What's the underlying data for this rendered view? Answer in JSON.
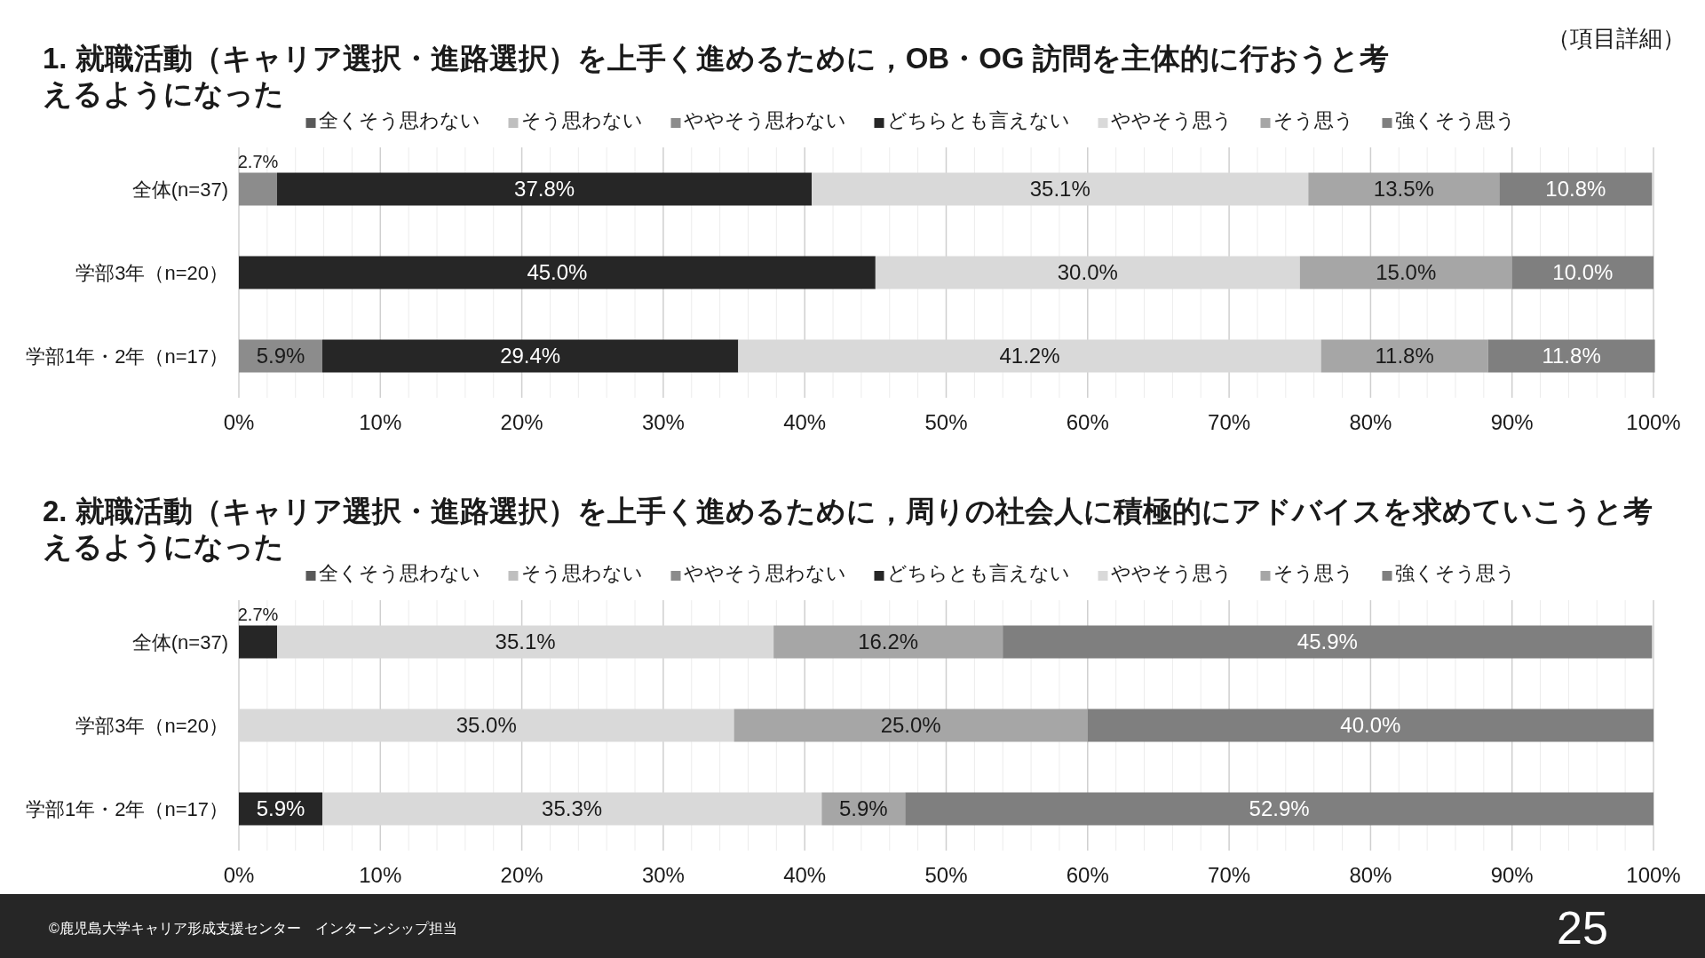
{
  "chart_data": [
    {
      "type": "bar",
      "orientation": "horizontal",
      "stacked": true,
      "title": "1. 就職活動（キャリア選択・進路選択）を上手く進めるために，OB・OG 訪問を主体的に行おうと考えるようになった",
      "annotations": [
        "（項目詳細）"
      ],
      "categories": [
        "全体(n=37)",
        "学部3年（n=20）",
        "学部1年・2年（n=17）"
      ],
      "legend": "top",
      "grid": "x",
      "xlim": [
        0,
        100
      ],
      "xticks": [
        {
          "value": 0,
          "label": "0%"
        },
        {
          "value": 2,
          "label": null
        },
        {
          "value": 4,
          "label": null
        },
        {
          "value": 6,
          "label": null
        },
        {
          "value": 8,
          "label": null
        },
        {
          "value": 10,
          "label": "10%"
        },
        {
          "value": 12,
          "label": null
        },
        {
          "value": 14,
          "label": null
        },
        {
          "value": 16,
          "label": null
        },
        {
          "value": 18,
          "label": null
        },
        {
          "value": 20,
          "label": "20%"
        },
        {
          "value": 22,
          "label": null
        },
        {
          "value": 24,
          "label": null
        },
        {
          "value": 26,
          "label": null
        },
        {
          "value": 28,
          "label": null
        },
        {
          "value": 30,
          "label": "30%"
        },
        {
          "value": 32,
          "label": null
        },
        {
          "value": 34,
          "label": null
        },
        {
          "value": 36,
          "label": null
        },
        {
          "value": 38,
          "label": null
        },
        {
          "value": 40,
          "label": "40%"
        },
        {
          "value": 42,
          "label": null
        },
        {
          "value": 44,
          "label": null
        },
        {
          "value": 46,
          "label": null
        },
        {
          "value": 48,
          "label": null
        },
        {
          "value": 50,
          "label": "50%"
        },
        {
          "value": 52,
          "label": null
        },
        {
          "value": 54,
          "label": null
        },
        {
          "value": 56,
          "label": null
        },
        {
          "value": 58,
          "label": null
        },
        {
          "value": 60,
          "label": "60%"
        },
        {
          "value": 62,
          "label": null
        },
        {
          "value": 64,
          "label": null
        },
        {
          "value": 66,
          "label": null
        },
        {
          "value": 68,
          "label": null
        },
        {
          "value": 70,
          "label": "70%"
        },
        {
          "value": 72,
          "label": null
        },
        {
          "value": 74,
          "label": null
        },
        {
          "value": 76,
          "label": null
        },
        {
          "value": 78,
          "label": null
        },
        {
          "value": 80,
          "label": "80%"
        },
        {
          "value": 82,
          "label": null
        },
        {
          "value": 84,
          "label": null
        },
        {
          "value": 86,
          "label": null
        },
        {
          "value": 88,
          "label": null
        },
        {
          "value": 90,
          "label": "90%"
        },
        {
          "value": 92,
          "label": null
        },
        {
          "value": 94,
          "label": null
        },
        {
          "value": 96,
          "label": null
        },
        {
          "value": 98,
          "label": null
        },
        {
          "value": 100,
          "label": "100%"
        }
      ],
      "series": [
        {
          "name": "全くそう思わない",
          "color": "#595959",
          "values": [
            0,
            0,
            0
          ]
        },
        {
          "name": "そう思わない",
          "color": "#bfbfbf",
          "values": [
            0,
            0,
            0
          ]
        },
        {
          "name": "ややそう思わない",
          "color": "#8c8c8c",
          "values": [
            2.7,
            0,
            5.9
          ],
          "value_labels": [
            "2.7%",
            null,
            "5.9%"
          ]
        },
        {
          "name": "どちらとも言えない",
          "color": "#262626",
          "values": [
            37.8,
            45.0,
            29.4
          ],
          "value_labels": [
            "37.8%",
            "45.0%",
            "29.4%"
          ]
        },
        {
          "name": "ややそう思う",
          "color": "#d9d9d9",
          "values": [
            35.1,
            30.0,
            41.2
          ],
          "value_labels": [
            "35.1%",
            "30.0%",
            "41.2%"
          ]
        },
        {
          "name": "そう思う",
          "color": "#a6a6a6",
          "values": [
            13.5,
            15.0,
            11.8
          ],
          "value_labels": [
            "13.5%",
            "15.0%",
            "11.8%"
          ]
        },
        {
          "name": "強くそう思う",
          "color": "#7f7f7f",
          "values": [
            10.8,
            10.0,
            11.8
          ],
          "value_labels": [
            "10.8%",
            "10.0%",
            "11.8%"
          ]
        }
      ]
    },
    {
      "type": "bar",
      "orientation": "horizontal",
      "stacked": true,
      "title": "2. 就職活動（キャリア選択・進路選択）を上手く進めるために，周りの社会人に積極的にアドバイスを求めていこうと考えるようになった",
      "annotations": [
        "©鹿児島大学キャリア形成支援センター　インターンシップ担当",
        "25"
      ],
      "categories": [
        "全体(n=37)",
        "学部3年（n=20）",
        "学部1年・2年（n=17）"
      ],
      "legend": "top",
      "grid": "x",
      "xlim": [
        0,
        100
      ],
      "xticks": [
        {
          "value": 0,
          "label": "0%"
        },
        {
          "value": 2,
          "label": null
        },
        {
          "value": 4,
          "label": null
        },
        {
          "value": 6,
          "label": null
        },
        {
          "value": 8,
          "label": null
        },
        {
          "value": 10,
          "label": "10%"
        },
        {
          "value": 12,
          "label": null
        },
        {
          "value": 14,
          "label": null
        },
        {
          "value": 16,
          "label": null
        },
        {
          "value": 18,
          "label": null
        },
        {
          "value": 20,
          "label": "20%"
        },
        {
          "value": 22,
          "label": null
        },
        {
          "value": 24,
          "label": null
        },
        {
          "value": 26,
          "label": null
        },
        {
          "value": 28,
          "label": null
        },
        {
          "value": 30,
          "label": "30%"
        },
        {
          "value": 32,
          "label": null
        },
        {
          "value": 34,
          "label": null
        },
        {
          "value": 36,
          "label": null
        },
        {
          "value": 38,
          "label": null
        },
        {
          "value": 40,
          "label": "40%"
        },
        {
          "value": 42,
          "label": null
        },
        {
          "value": 44,
          "label": null
        },
        {
          "value": 46,
          "label": null
        },
        {
          "value": 48,
          "label": null
        },
        {
          "value": 50,
          "label": "50%"
        },
        {
          "value": 52,
          "label": null
        },
        {
          "value": 54,
          "label": null
        },
        {
          "value": 56,
          "label": null
        },
        {
          "value": 58,
          "label": null
        },
        {
          "value": 60,
          "label": "60%"
        },
        {
          "value": 62,
          "label": null
        },
        {
          "value": 64,
          "label": null
        },
        {
          "value": 66,
          "label": null
        },
        {
          "value": 68,
          "label": null
        },
        {
          "value": 70,
          "label": "70%"
        },
        {
          "value": 72,
          "label": null
        },
        {
          "value": 74,
          "label": null
        },
        {
          "value": 76,
          "label": null
        },
        {
          "value": 78,
          "label": null
        },
        {
          "value": 80,
          "label": "80%"
        },
        {
          "value": 82,
          "label": null
        },
        {
          "value": 84,
          "label": null
        },
        {
          "value": 86,
          "label": null
        },
        {
          "value": 88,
          "label": null
        },
        {
          "value": 90,
          "label": "90%"
        },
        {
          "value": 92,
          "label": null
        },
        {
          "value": 94,
          "label": null
        },
        {
          "value": 96,
          "label": null
        },
        {
          "value": 98,
          "label": null
        },
        {
          "value": 100,
          "label": "100%"
        }
      ],
      "series": [
        {
          "name": "全くそう思わない",
          "color": "#595959",
          "values": [
            0,
            0,
            0
          ]
        },
        {
          "name": "そう思わない",
          "color": "#bfbfbf",
          "values": [
            0,
            0,
            0
          ]
        },
        {
          "name": "ややそう思わない",
          "color": "#8c8c8c",
          "values": [
            0,
            0,
            0
          ]
        },
        {
          "name": "どちらとも言えない",
          "color": "#262626",
          "values": [
            2.7,
            0,
            5.9
          ],
          "value_labels": [
            "2.7%",
            null,
            "5.9%"
          ]
        },
        {
          "name": "ややそう思う",
          "color": "#d9d9d9",
          "values": [
            35.1,
            35.0,
            35.3
          ],
          "value_labels": [
            "35.1%",
            "35.0%",
            "35.3%"
          ]
        },
        {
          "name": "そう思う",
          "color": "#a6a6a6",
          "values": [
            16.2,
            25.0,
            5.9
          ],
          "value_labels": [
            "16.2%",
            "25.0%",
            "5.9%"
          ]
        },
        {
          "name": "強くそう思う",
          "color": "#7f7f7f",
          "values": [
            45.9,
            40.0,
            52.9
          ],
          "value_labels": [
            "45.9%",
            "40.0%",
            "52.9%"
          ]
        }
      ]
    }
  ]
}
